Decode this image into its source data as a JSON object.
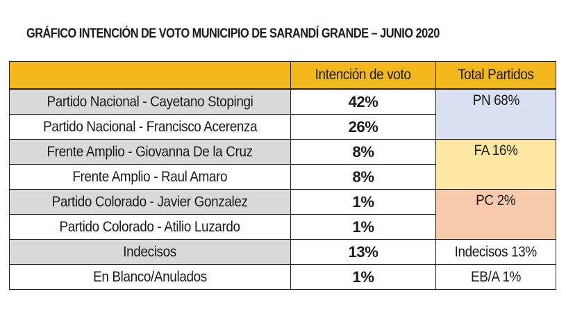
{
  "title": "GRÁFICO INTENCIÓN DE VOTO MUNICIPIO DE SARANDÍ GRANDE – JUNIO 2020",
  "headers": [
    "",
    "Intención de voto",
    "Total Partidos"
  ],
  "rows": [
    {
      "candidate": "Partido Nacional - Cayetano Stopingi",
      "vote": "42%"
    },
    {
      "candidate": "Partido Nacional - Francisco Acerenza",
      "vote": "26%"
    },
    {
      "candidate": "Frente Amplio - Giovanna De la Cruz",
      "vote": "8%"
    },
    {
      "candidate": "Frente Amplio - Raul Amaro",
      "vote": "8%"
    },
    {
      "candidate": "Partido Colorado - Javier Gonzalez",
      "vote": "1%"
    },
    {
      "candidate": "Partido Colorado - Atilio Luzardo",
      "vote": "1%"
    },
    {
      "candidate": "Indecisos",
      "vote": "13%"
    },
    {
      "candidate": "En Blanco/Anulados",
      "vote": "1%"
    }
  ],
  "totals": [
    {
      "label": "PN 68%",
      "color": "#d9e0f1"
    },
    {
      "label": "FA 16%",
      "color": "#fde7a1"
    },
    {
      "label": "PC 2%",
      "color": "#f7caac"
    },
    {
      "label": "Indecisos 13%",
      "color": "#ffffff"
    },
    {
      "label": "EB/A 1%",
      "color": "#ffffff"
    }
  ],
  "colors": {
    "header": "#f2b81c",
    "grey_row": "#d9d9d9"
  }
}
